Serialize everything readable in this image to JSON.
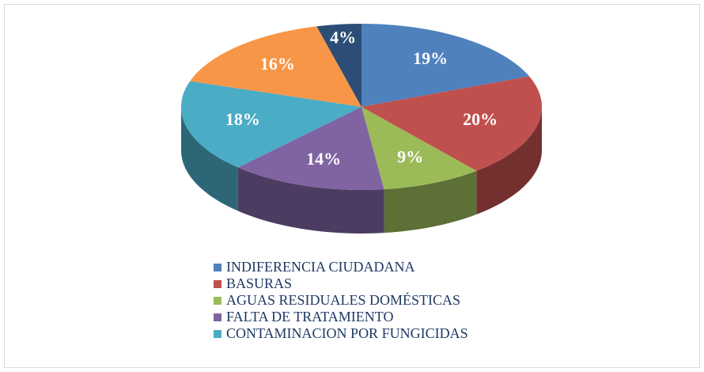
{
  "chart_data": {
    "type": "pie",
    "categories": [
      "INDIFERENCIA CIUDADANA",
      "BASURAS",
      "AGUAS RESIDUALES DOMÉSTICAS",
      "FALTA DE TRATAMIENTO",
      "CONTAMINACION POR FUNGICIDAS",
      null,
      null
    ],
    "values": [
      19,
      20,
      9,
      14,
      18,
      16,
      4
    ],
    "value_labels": [
      "19%",
      "20%",
      "9%",
      "14%",
      "18%",
      "16%",
      "4%"
    ],
    "colors": [
      "#4f81bd",
      "#c0504d",
      "#9bbb59",
      "#8064a2",
      "#4bacc6",
      "#f79646",
      "#2c4d75"
    ],
    "legend": "bottom"
  }
}
